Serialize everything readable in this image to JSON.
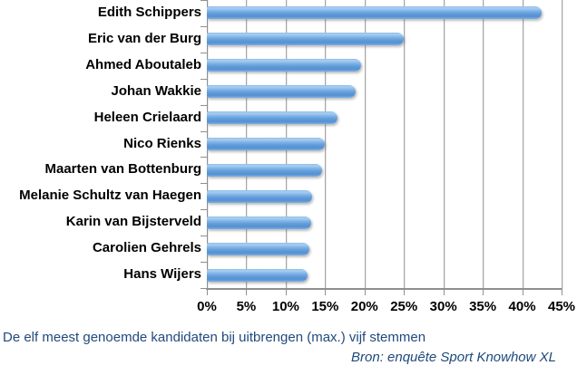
{
  "chart_data": {
    "type": "bar",
    "orientation": "horizontal",
    "categories": [
      "Edith Schippers",
      "Eric van der Burg",
      "Ahmed Aboutaleb",
      "Johan Wakkie",
      "Heleen Crielaard",
      "Nico Rienks",
      "Maarten van Bottenburg",
      "Melanie Schultz van Haegen",
      "Karin van Bijsterveld",
      "Carolien Gehrels",
      "Hans Wijers"
    ],
    "values": [
      42.5,
      25,
      19.6,
      18.9,
      16.6,
      15,
      14.6,
      13.4,
      13.2,
      13,
      12.8
    ],
    "value_unit": "%",
    "x_tick_labels": [
      "0%",
      "5%",
      "10%",
      "15%",
      "20%",
      "25%",
      "30%",
      "35%",
      "40%",
      "45%"
    ],
    "x_tick_values": [
      0,
      5,
      10,
      15,
      20,
      25,
      30,
      35,
      40,
      45
    ],
    "xlim": [
      0,
      45
    ],
    "grid": true,
    "legend_position": "none",
    "bar_color": "#5b9bd5",
    "gridline_color": "#a6a6a6",
    "caption": "De elf meest genoemde kandidaten bij uitbrengen (max.) vijf stemmen",
    "source": "Bron: enquête Sport Knowhow XL",
    "caption_color": "#1F497D"
  }
}
